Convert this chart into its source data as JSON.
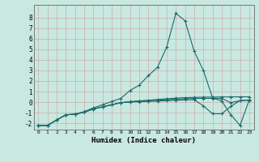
{
  "title": "",
  "xlabel": "Humidex (Indice chaleur)",
  "background_color": "#c8e8e0",
  "grid_color": "#b0c8c0",
  "line_color": "#1a6b6b",
  "xlim": [
    -0.5,
    23.5
  ],
  "ylim": [
    -2.6,
    9.2
  ],
  "xticks": [
    0,
    1,
    2,
    3,
    4,
    5,
    6,
    7,
    8,
    9,
    10,
    11,
    12,
    13,
    14,
    15,
    16,
    17,
    18,
    19,
    20,
    21,
    22,
    23
  ],
  "yticks": [
    -2,
    -1,
    0,
    1,
    2,
    3,
    4,
    5,
    6,
    7,
    8
  ],
  "x": [
    0,
    1,
    2,
    3,
    4,
    5,
    6,
    7,
    8,
    9,
    10,
    11,
    12,
    13,
    14,
    15,
    16,
    17,
    18,
    19,
    20,
    21,
    22,
    23
  ],
  "series": [
    [
      -2.2,
      -2.2,
      -1.7,
      -1.2,
      -1.15,
      -0.95,
      -0.65,
      -0.45,
      -0.25,
      -0.05,
      0.05,
      0.12,
      0.18,
      0.25,
      0.32,
      0.38,
      0.42,
      0.45,
      0.47,
      0.48,
      0.49,
      0.5,
      0.5,
      0.5
    ],
    [
      -2.2,
      -2.2,
      -1.7,
      -1.2,
      -1.15,
      -0.95,
      -0.65,
      -0.45,
      -0.25,
      -0.05,
      0.02,
      0.08,
      0.12,
      0.18,
      0.22,
      0.28,
      0.32,
      0.35,
      0.35,
      0.35,
      0.35,
      -0.05,
      0.15,
      0.18
    ],
    [
      -2.2,
      -2.2,
      -1.7,
      -1.2,
      -1.15,
      -0.9,
      -0.55,
      -0.25,
      0.05,
      0.35,
      1.1,
      1.6,
      2.5,
      3.3,
      5.2,
      8.4,
      7.7,
      4.8,
      3.0,
      0.4,
      0.1,
      -1.2,
      -2.2,
      0.2
    ],
    [
      -2.2,
      -2.2,
      -1.7,
      -1.2,
      -1.15,
      -0.95,
      -0.65,
      -0.45,
      -0.25,
      -0.05,
      0.0,
      0.04,
      0.07,
      0.1,
      0.13,
      0.18,
      0.2,
      0.22,
      -0.35,
      -1.1,
      -1.1,
      -0.4,
      0.15,
      0.18
    ]
  ]
}
